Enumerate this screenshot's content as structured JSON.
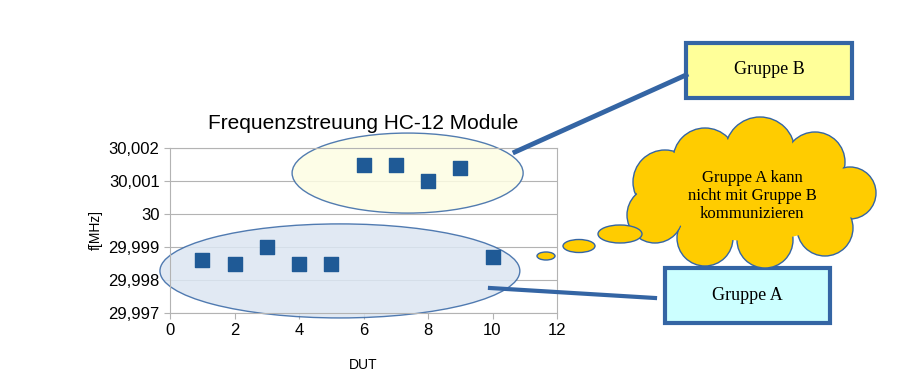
{
  "chart_data": {
    "type": "scatter",
    "title": "Frequenzstreuung HC-12 Module",
    "x_label": "DUT",
    "y_label": "f[MHz]",
    "x": [
      1,
      2,
      3,
      4,
      5,
      6,
      7,
      8,
      9,
      10
    ],
    "values": [
      29.9986,
      29.9985,
      29.999,
      29.9985,
      29.9985,
      30.0015,
      30.0015,
      30.001,
      30.0014,
      29.9987
    ],
    "color": "#1f5a96",
    "marker": "square",
    "xlim": [
      0,
      12
    ],
    "xticks": [
      0,
      2,
      4,
      6,
      8,
      10,
      12
    ],
    "ylim": [
      29.997,
      30.002
    ],
    "yticks": [
      {
        "value": 29.997,
        "label": "29,997"
      },
      {
        "value": 29.998,
        "label": "29,998"
      },
      {
        "value": 29.999,
        "label": "29,999"
      },
      30,
      {
        "value": 30.001,
        "label": "30,001"
      },
      {
        "value": 30.002,
        "label": "30,002"
      }
    ],
    "grid": true,
    "annotations": [
      "Gruppe B",
      "Gruppe A kann\nnicht mit Gruppe B\nkommunizieren",
      "Gruppe A"
    ]
  }
}
